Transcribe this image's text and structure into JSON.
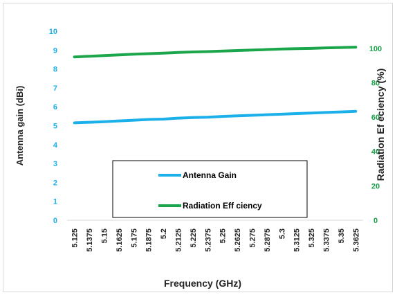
{
  "chart_data": {
    "type": "line",
    "xlabel": "Frequency (GHz)",
    "ylabel_left": "Antenna gain (dBi)",
    "ylabel_right": "Radiation Ef eciency (%)",
    "categories": [
      "5.125",
      "5.1375",
      "5.15",
      "5.1625",
      "5.175",
      "5.1875",
      "5.2",
      "5.2125",
      "5.225",
      "5.2375",
      "5.25",
      "5.2625",
      "5.275",
      "5.2875",
      "5.3",
      "5.3125",
      "5.325",
      "5.3375",
      "5.35",
      "5.3625"
    ],
    "ylim_left": [
      0,
      10
    ],
    "ylim_right": [
      0,
      110
    ],
    "yticks_left": [
      "0",
      "1",
      "2",
      "3",
      "4",
      "5",
      "6",
      "7",
      "8",
      "9",
      "10"
    ],
    "yticks_right": [
      "0",
      "20",
      "40",
      "60",
      "80",
      "100"
    ],
    "grid": false,
    "legend_placement": "center-bottom",
    "series": [
      {
        "name": "Antenna Gain",
        "axis": "left",
        "color": "#1bb0ea",
        "values": [
          5.15,
          5.18,
          5.21,
          5.25,
          5.29,
          5.33,
          5.35,
          5.4,
          5.43,
          5.45,
          5.49,
          5.52,
          5.55,
          5.58,
          5.61,
          5.64,
          5.67,
          5.7,
          5.73,
          5.76
        ]
      },
      {
        "name": "Radiation Eff ciency",
        "axis": "right",
        "color": "#1ca64c",
        "values": [
          95.0,
          95.4,
          95.8,
          96.2,
          96.6,
          96.9,
          97.2,
          97.6,
          97.9,
          98.1,
          98.4,
          98.7,
          99.0,
          99.3,
          99.6,
          99.8,
          100.0,
          100.3,
          100.5,
          100.7
        ]
      }
    ]
  }
}
